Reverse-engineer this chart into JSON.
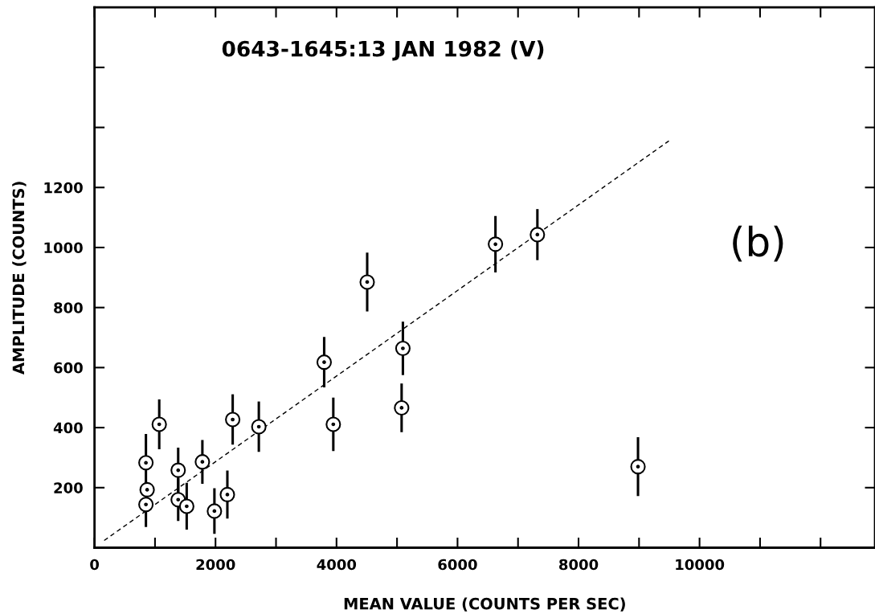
{
  "chart_data": {
    "type": "scatter",
    "title": "0643-1645:13 JAN 1982 (V)",
    "xlabel": "MEAN VALUE (COUNTS PER SEC)",
    "ylabel": "AMPLITUDE (COUNTS)",
    "annotations": [
      "(b)"
    ],
    "xlim": [
      0,
      12900
    ],
    "ylim": [
      0,
      1800
    ],
    "xticks": [
      0,
      {
        "value": 1000,
        "label": null
      },
      2000,
      {
        "value": 3000,
        "label": null
      },
      4000,
      {
        "value": 5000,
        "label": null
      },
      6000,
      {
        "value": 7000,
        "label": null
      },
      8000,
      {
        "value": 9000,
        "label": null
      },
      10000,
      {
        "value": 11000,
        "label": null
      },
      {
        "value": 12000,
        "label": null
      }
    ],
    "yticks": [
      200,
      400,
      600,
      800,
      1000,
      1200,
      {
        "value": 1400,
        "label": null
      },
      {
        "value": 1600,
        "label": null
      }
    ],
    "grid": false,
    "marker": "circle",
    "series": [
      {
        "color": "#000000",
        "x": [
          850,
          850,
          870,
          1070,
          1383,
          1383,
          1524,
          1783,
          1982,
          2196,
          2284,
          2716,
          3796,
          3947,
          4507,
          5097,
          5076,
          6627,
          7320,
          8983
        ],
        "values": [
          283,
          144,
          193,
          411,
          258,
          160,
          138,
          286,
          122,
          177,
          427,
          403,
          618,
          411,
          885,
          664,
          466,
          1011,
          1043,
          270
        ],
        "errors": [
          96,
          75,
          null,
          83,
          75,
          71,
          78,
          73,
          76,
          80,
          84,
          84,
          84,
          89,
          98,
          89,
          81,
          94,
          85,
          98
        ]
      },
      {
        "type": "line",
        "color": "#000000",
        "line_style": "dashed",
        "marker": "none",
        "x": [
          160,
          9493
        ],
        "values": [
          24,
          1355
        ]
      }
    ]
  }
}
